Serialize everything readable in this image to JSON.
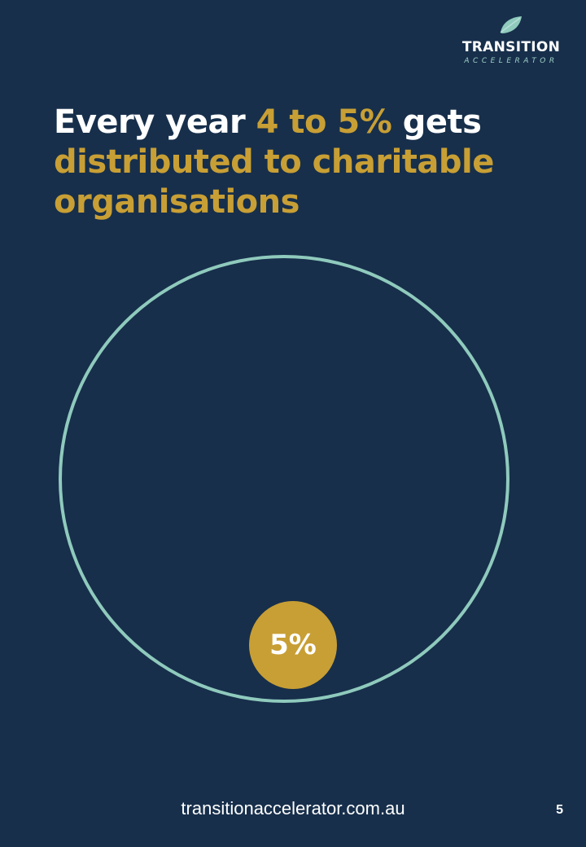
{
  "logo": {
    "title": "TRANSITION",
    "subtitle": "ACCELERATOR",
    "icon": "leaf-icon"
  },
  "headline": {
    "part1": "Every year ",
    "highlight1": "4 to 5%",
    "part2": " gets ",
    "highlight2": "distributed to charitable organisations"
  },
  "diagram": {
    "badge_label": "5%"
  },
  "footer": {
    "url": "transitionaccelerator.com.au",
    "page_number": "5"
  },
  "colors": {
    "background": "#172f4b",
    "accent_gold": "#c89f35",
    "circle_teal": "#8fcabd",
    "text": "#ffffff"
  }
}
